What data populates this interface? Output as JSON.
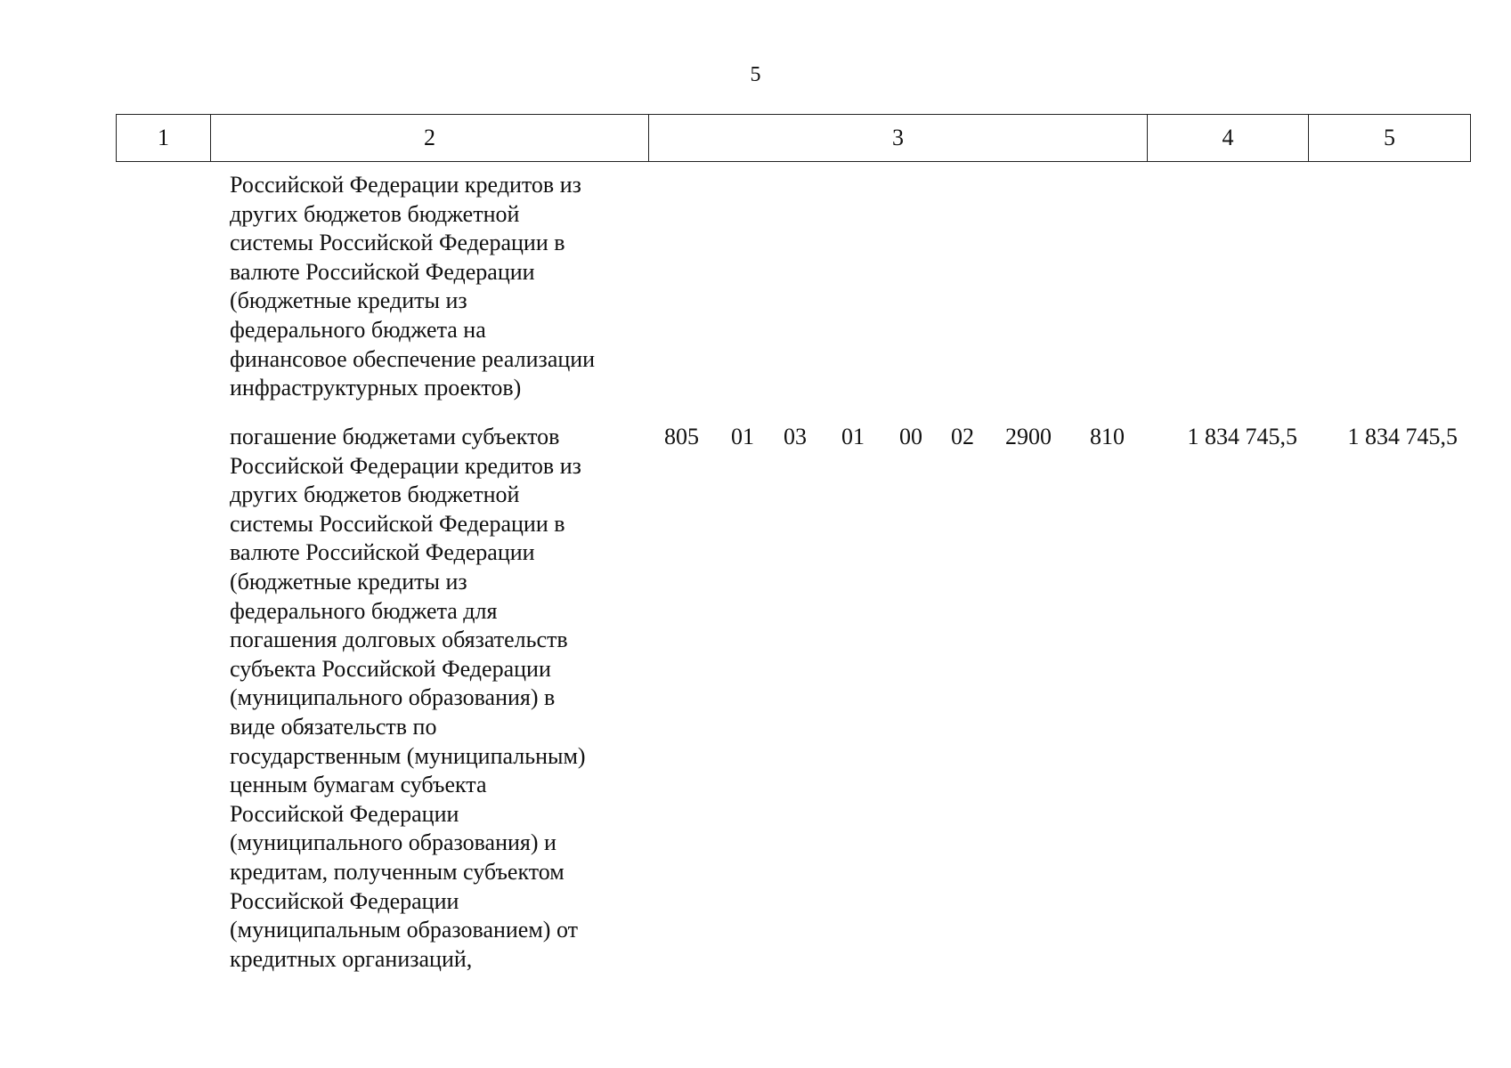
{
  "page_number": "5",
  "header": {
    "col1": "1",
    "col2": "2",
    "col3": "3",
    "col4": "4",
    "col5": "5"
  },
  "rows": [
    {
      "text": "Российской Федерации кредитов из\nдругих бюджетов бюджетной\nсистемы Российской Федерации в\nвалюте Российской Федерации\n(бюджетные кредиты из\nфедерального бюджета на\nфинансовое обеспечение реализации\nинфраструктурных проектов)"
    },
    {
      "text": "погашение бюджетами субъектов\nРоссийской Федерации кредитов из\nдругих бюджетов бюджетной\nсистемы Российской Федерации в\nвалюте Российской Федерации\n(бюджетные кредиты из\nфедерального бюджета для\nпогашения долговых обязательств\nсубъекта Российской Федерации\n(муниципального образования) в\nвиде обязательств по\nгосударственным (муниципальным)\nценным бумагам субъекта\nРоссийской Федерации\n(муниципального образования) и\nкредитам, полученным субъектом\nРоссийской Федерации\n(муниципальным образованием) от\nкредитных организаций,",
      "codes": [
        "805",
        "01",
        "03",
        "01",
        "00",
        "02",
        "2900",
        "810"
      ],
      "amount_col4": "1 834 745,5",
      "amount_col5": "1 834 745,5"
    }
  ]
}
